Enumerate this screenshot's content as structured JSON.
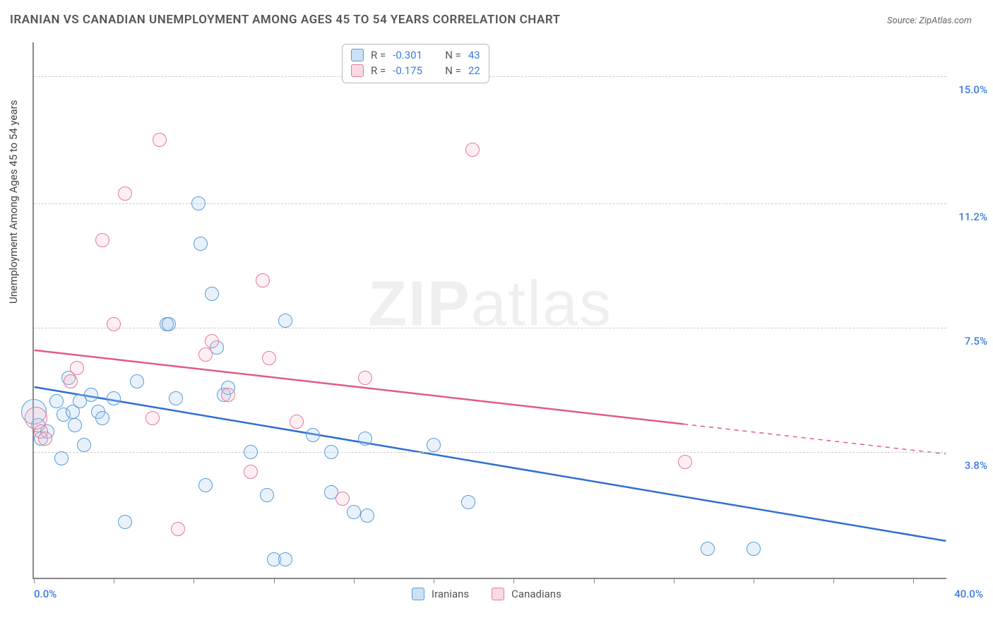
{
  "title": "IRANIAN VS CANADIAN UNEMPLOYMENT AMONG AGES 45 TO 54 YEARS CORRELATION CHART",
  "source_label": "Source: ZipAtlas.com",
  "watermark_zip": "ZIP",
  "watermark_atlas": "atlas",
  "ylabel": "Unemployment Among Ages 45 to 54 years",
  "chart": {
    "type": "scatter",
    "xlim": [
      0,
      40
    ],
    "ylim": [
      0,
      16
    ],
    "x_min_label": "0.0%",
    "x_max_label": "40.0%",
    "y_gridlines": [
      3.8,
      7.5,
      11.2,
      15.0
    ],
    "y_grid_labels": [
      "3.8%",
      "7.5%",
      "11.2%",
      "15.0%"
    ],
    "xtick_positions": [
      0,
      3.5,
      7,
      10.5,
      14,
      17.5,
      21,
      24.5,
      28,
      31.5,
      35,
      38.5
    ],
    "background_color": "#ffffff",
    "grid_color": "#cccccc",
    "axis_color": "#888888",
    "marker_radius": 10,
    "marker_stroke_width": 1.5,
    "marker_fill_opacity": 0.25,
    "series": [
      {
        "key": "iranians",
        "label": "Iranians",
        "fill": "#a9cdf0",
        "stroke": "#5b9bd5",
        "line_color": "#2f6fd1",
        "r_value": "-0.301",
        "n_value": "43",
        "trend": {
          "x1": 0,
          "y1": 5.7,
          "x2": 40,
          "y2": 1.1,
          "solid_until_x": 40
        },
        "points": [
          [
            0.0,
            5.0,
            18
          ],
          [
            0.2,
            4.6
          ],
          [
            0.3,
            4.2
          ],
          [
            0.6,
            4.4
          ],
          [
            1.0,
            5.3
          ],
          [
            1.2,
            3.6
          ],
          [
            1.3,
            4.9
          ],
          [
            1.5,
            6.0
          ],
          [
            1.7,
            5.0
          ],
          [
            1.8,
            4.6
          ],
          [
            2.0,
            5.3
          ],
          [
            2.2,
            4.0
          ],
          [
            2.5,
            5.5
          ],
          [
            2.8,
            5.0
          ],
          [
            3.0,
            4.8
          ],
          [
            3.5,
            5.4
          ],
          [
            4.0,
            1.7
          ],
          [
            4.5,
            5.9
          ],
          [
            5.8,
            7.6
          ],
          [
            5.9,
            7.6
          ],
          [
            6.2,
            5.4
          ],
          [
            7.2,
            11.2
          ],
          [
            7.3,
            10.0
          ],
          [
            7.5,
            2.8
          ],
          [
            7.8,
            8.5
          ],
          [
            8.0,
            6.9
          ],
          [
            8.3,
            5.5
          ],
          [
            8.5,
            5.7
          ],
          [
            9.5,
            3.8
          ],
          [
            10.2,
            2.5
          ],
          [
            10.5,
            0.6
          ],
          [
            11.0,
            0.6
          ],
          [
            11.0,
            7.7
          ],
          [
            12.2,
            4.3
          ],
          [
            13.0,
            2.6
          ],
          [
            13.0,
            3.8
          ],
          [
            14.0,
            2.0
          ],
          [
            14.5,
            4.2
          ],
          [
            14.6,
            1.9
          ],
          [
            17.5,
            4.0
          ],
          [
            19.0,
            2.3
          ],
          [
            29.5,
            0.9
          ],
          [
            31.5,
            0.9
          ]
        ]
      },
      {
        "key": "canadians",
        "label": "Canadians",
        "fill": "#f6c1cf",
        "stroke": "#e47a9a",
        "line_color": "#e15b86",
        "r_value": "-0.175",
        "n_value": "22",
        "trend": {
          "x1": 0,
          "y1": 6.8,
          "x2": 40,
          "y2": 3.7,
          "solid_until_x": 28.5
        },
        "points": [
          [
            0.1,
            4.8,
            16
          ],
          [
            0.3,
            4.4
          ],
          [
            0.5,
            4.2
          ],
          [
            1.6,
            5.9
          ],
          [
            1.9,
            6.3
          ],
          [
            3.0,
            10.1
          ],
          [
            3.5,
            7.6
          ],
          [
            4.0,
            11.5
          ],
          [
            5.2,
            4.8
          ],
          [
            5.5,
            13.1
          ],
          [
            6.3,
            1.5
          ],
          [
            7.5,
            6.7
          ],
          [
            7.8,
            7.1
          ],
          [
            8.5,
            5.5
          ],
          [
            9.5,
            3.2
          ],
          [
            10.0,
            8.9
          ],
          [
            10.3,
            6.6
          ],
          [
            11.5,
            4.7
          ],
          [
            13.5,
            2.4
          ],
          [
            14.5,
            6.0
          ],
          [
            19.2,
            12.8
          ],
          [
            28.5,
            3.5
          ]
        ]
      }
    ]
  },
  "legend_top": {
    "r_prefix": "R  =",
    "n_prefix": "N  =",
    "value_color": "#3a7de0"
  },
  "legend_bottom": {
    "items": [
      "iranians",
      "canadians"
    ]
  }
}
